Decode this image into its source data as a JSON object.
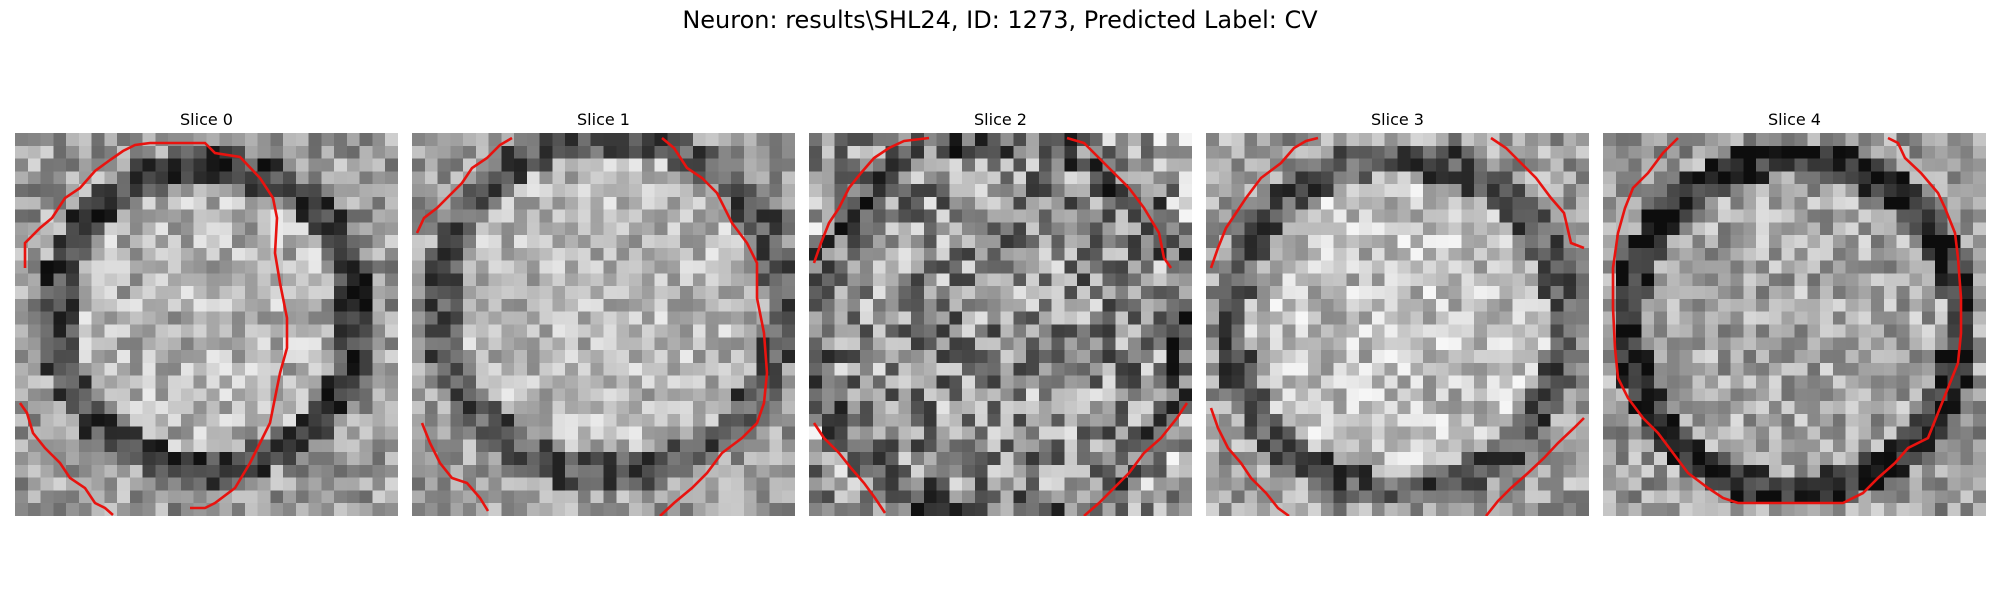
{
  "figure": {
    "title": "Neuron: results\\SHL24, ID: 1273, Predicted Label: CV"
  },
  "contour_color": "#e8130f",
  "panels": [
    {
      "title": "Slice 0"
    },
    {
      "title": "Slice 1"
    },
    {
      "title": "Slice 2"
    },
    {
      "title": "Slice 3"
    },
    {
      "title": "Slice 4"
    }
  ]
}
